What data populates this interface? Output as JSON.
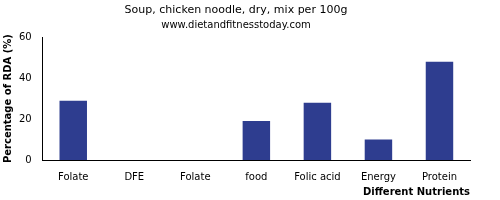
{
  "chart_data": {
    "type": "bar",
    "title": "Soup, chicken noodle, dry, mix per 100g",
    "subtitle": "www.dietandfitnesstoday.com",
    "x_label": "Different Nutrients",
    "y_label": "Percentage of RDA (%)",
    "categories": [
      "Folate",
      "DFE",
      "Folate",
      "food",
      "Folic acid",
      "Energy",
      "Protein"
    ],
    "values": [
      29,
      0,
      0,
      19,
      28,
      10,
      48
    ],
    "color": "#2e3d8f",
    "ylim": [
      0,
      60
    ],
    "yticks": [
      0,
      20,
      40,
      60
    ],
    "grid": false
  }
}
